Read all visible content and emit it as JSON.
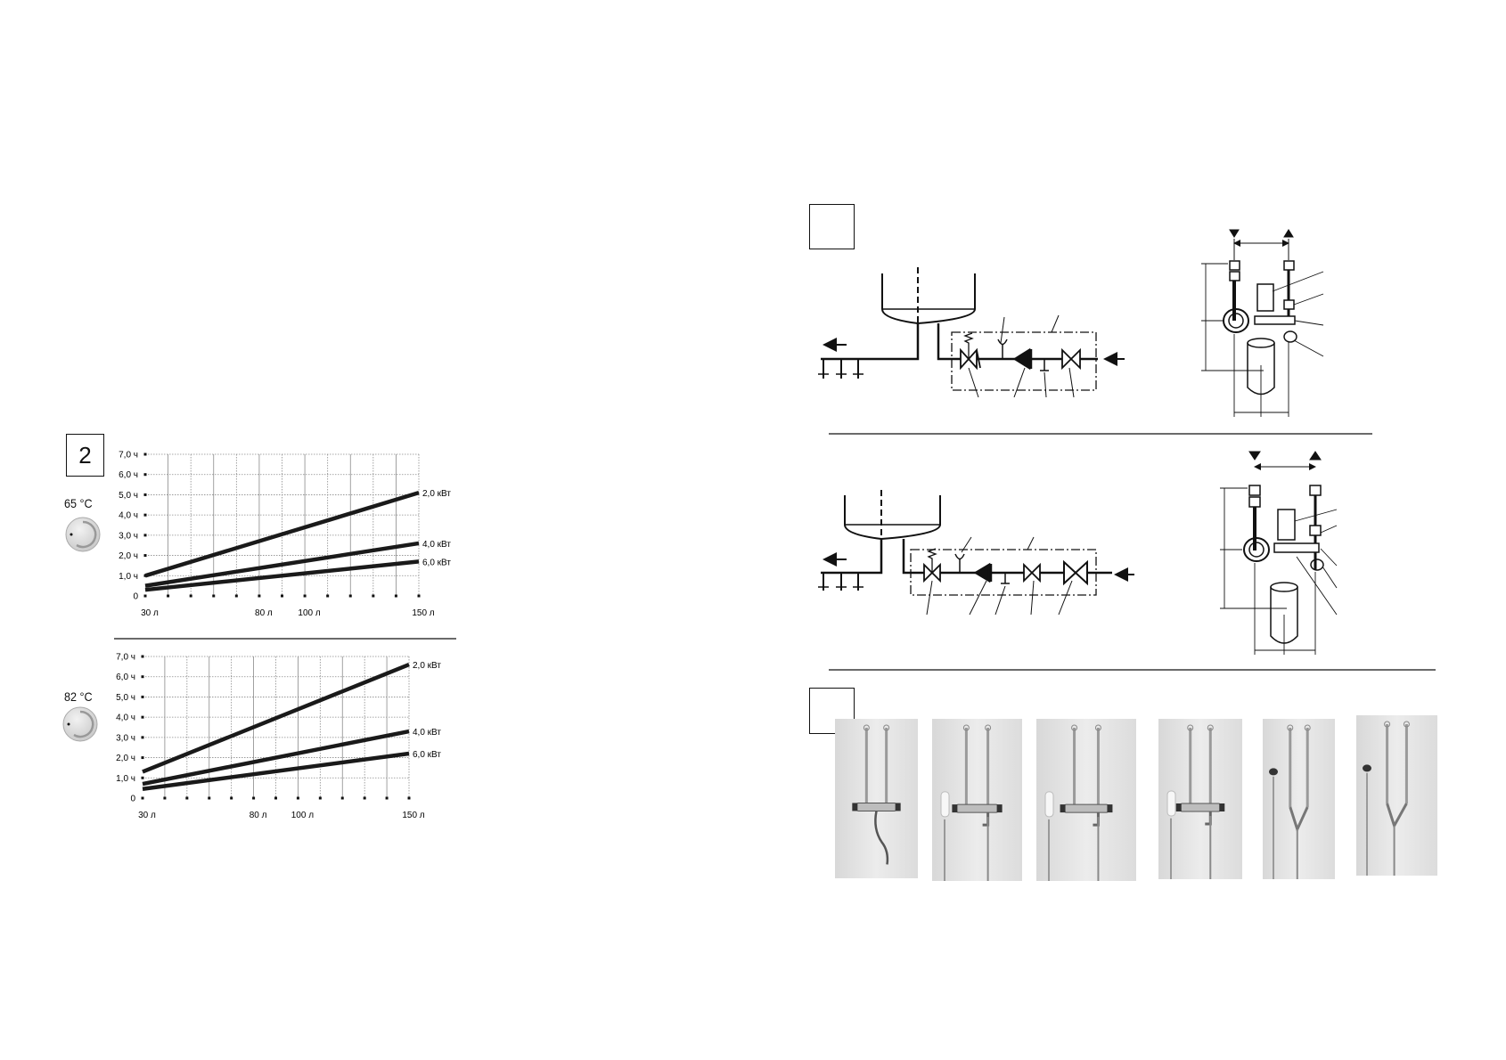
{
  "figure_number": "2",
  "charts_panel": {
    "temperatures": [
      "65 °C",
      "82 °C"
    ]
  },
  "chart_data": [
    {
      "type": "line",
      "title": "",
      "xlabel": "",
      "ylabel": "",
      "xlim": [
        30,
        150
      ],
      "ylim": [
        0,
        7
      ],
      "grid": true,
      "x_ticks": [
        {
          "value": 30,
          "label": "30 л"
        },
        {
          "value": 80,
          "label": "80 л"
        },
        {
          "value": 100,
          "label": "100 л"
        },
        {
          "value": 150,
          "label": "150 л"
        }
      ],
      "y_ticks": [
        {
          "value": 0,
          "label": "0"
        },
        {
          "value": 1,
          "label": "1,0 ч"
        },
        {
          "value": 2,
          "label": "2,0 ч"
        },
        {
          "value": 3,
          "label": "3,0 ч"
        },
        {
          "value": 4,
          "label": "4,0 ч"
        },
        {
          "value": 5,
          "label": "5,0 ч"
        },
        {
          "value": 6,
          "label": "6,0 ч"
        },
        {
          "value": 7,
          "label": "7,0 ч"
        }
      ],
      "series": [
        {
          "name": "2,0 кВт",
          "x": [
            30,
            150
          ],
          "y": [
            1.0,
            5.1
          ]
        },
        {
          "name": "4,0 кВт",
          "x": [
            30,
            150
          ],
          "y": [
            0.5,
            2.6
          ]
        },
        {
          "name": "6,0 кВт",
          "x": [
            30,
            150
          ],
          "y": [
            0.3,
            1.7
          ]
        }
      ]
    },
    {
      "type": "line",
      "title": "",
      "xlabel": "",
      "ylabel": "",
      "xlim": [
        30,
        150
      ],
      "ylim": [
        0,
        7
      ],
      "grid": true,
      "x_ticks": [
        {
          "value": 30,
          "label": "30 л"
        },
        {
          "value": 80,
          "label": "80 л"
        },
        {
          "value": 100,
          "label": "100 л"
        },
        {
          "value": 150,
          "label": "150 л"
        }
      ],
      "y_ticks": [
        {
          "value": 0,
          "label": "0"
        },
        {
          "value": 1,
          "label": "1,0 ч"
        },
        {
          "value": 2,
          "label": "2,0 ч"
        },
        {
          "value": 3,
          "label": "3,0 ч"
        },
        {
          "value": 4,
          "label": "4,0 ч"
        },
        {
          "value": 5,
          "label": "5,0 ч"
        },
        {
          "value": 6,
          "label": "6,0 ч"
        },
        {
          "value": 7,
          "label": "7,0 ч"
        }
      ],
      "series": [
        {
          "name": "2,0 кВт",
          "x": [
            30,
            150
          ],
          "y": [
            1.3,
            6.6
          ]
        },
        {
          "name": "4,0 кВт",
          "x": [
            30,
            150
          ],
          "y": [
            0.7,
            3.3
          ]
        },
        {
          "name": "6,0 кВт",
          "x": [
            30,
            150
          ],
          "y": [
            0.45,
            2.2
          ]
        }
      ]
    }
  ],
  "colors": {
    "ink": "#111111",
    "grid": "#8a8a8a",
    "dial": "#dcdcdc",
    "photo_bg": "#e4e4e4"
  },
  "photos_count": 6
}
